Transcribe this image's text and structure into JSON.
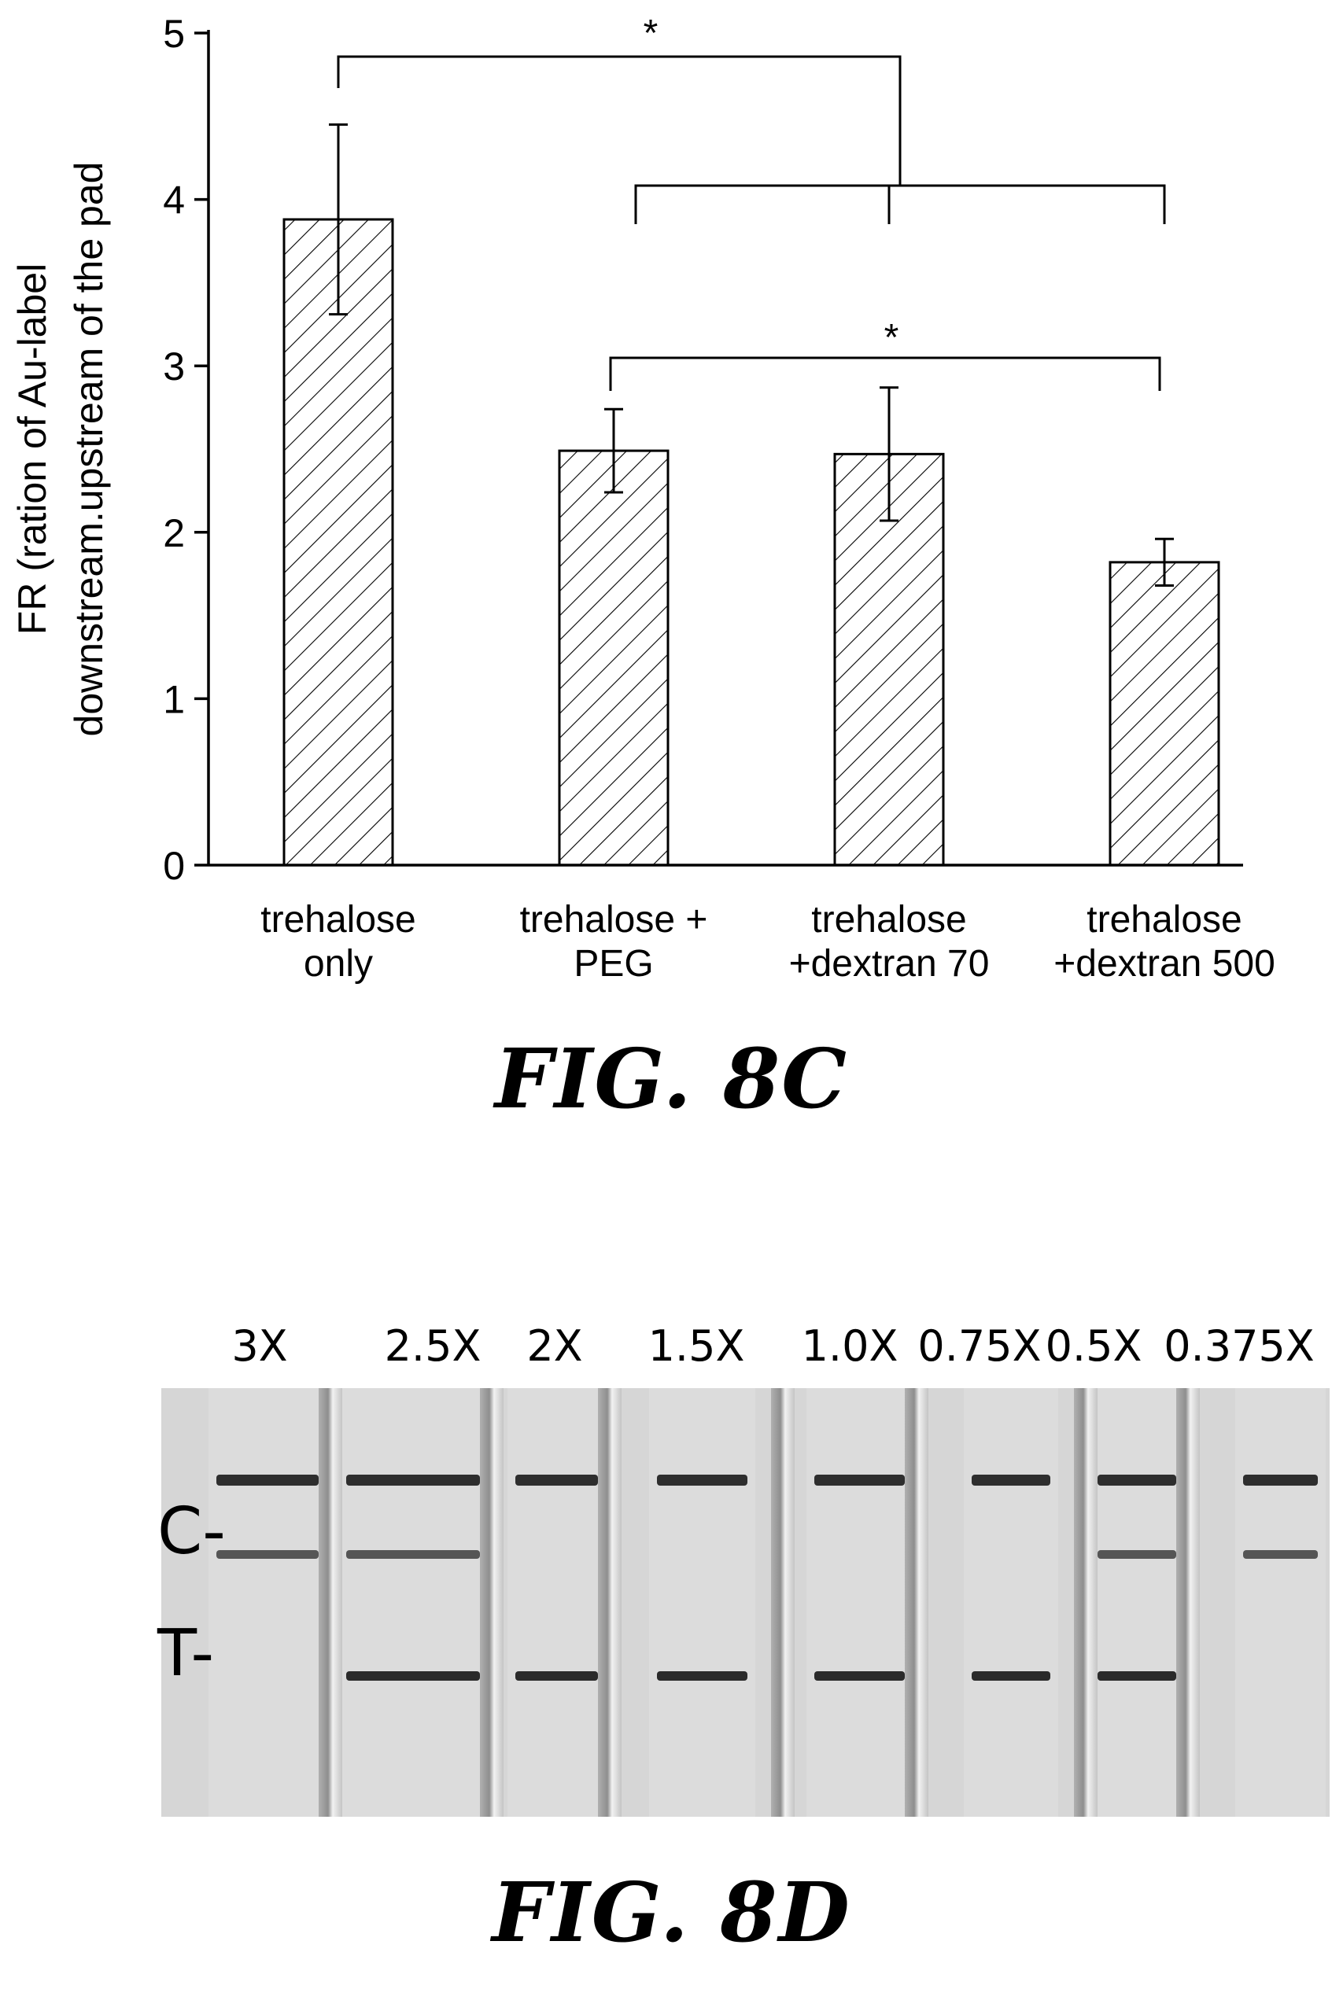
{
  "chart_data": {
    "type": "bar",
    "categories": [
      "trehalose\nonly",
      "trehalose +\nPEG",
      "trehalose\n+dextran 70",
      "trehalose\n+dextran 500"
    ],
    "values": [
      3.88,
      2.49,
      2.47,
      1.82
    ],
    "error": [
      0.57,
      0.25,
      0.4,
      0.14
    ],
    "ylabel": "FR (ration of Au-label\ndownstream.upstream of the pad",
    "ylim": [
      0,
      5
    ],
    "yticks": [
      0,
      1,
      2,
      3,
      4,
      5
    ],
    "bar_fill": "diagonal-hatch",
    "grid": false,
    "significance": [
      {
        "label": "*",
        "from": 0,
        "to": [
          1,
          2,
          3
        ]
      },
      {
        "label": "*",
        "from": 1,
        "to": [
          3
        ]
      }
    ]
  },
  "figures": {
    "caption_8c": "FIG. 8C",
    "caption_8d": "FIG. 8D"
  },
  "gel": {
    "lanes": [
      {
        "label": "3X",
        "c_band": true,
        "t_band": false
      },
      {
        "label": "2.5X",
        "c_band": true,
        "t_band": true
      },
      {
        "label": "2X",
        "c_band": false,
        "t_band": true
      },
      {
        "label": "1.5X",
        "c_band": false,
        "t_band": true
      },
      {
        "label": "1.0X",
        "c_band": false,
        "t_band": true
      },
      {
        "label": "0.75X",
        "c_band": false,
        "t_band": true
      },
      {
        "label": "0.5X",
        "c_band": true,
        "t_band": true
      },
      {
        "label": "0.375X",
        "c_band": true,
        "t_band": false
      }
    ],
    "row_labels": {
      "control": "C-",
      "test": "T-"
    }
  }
}
